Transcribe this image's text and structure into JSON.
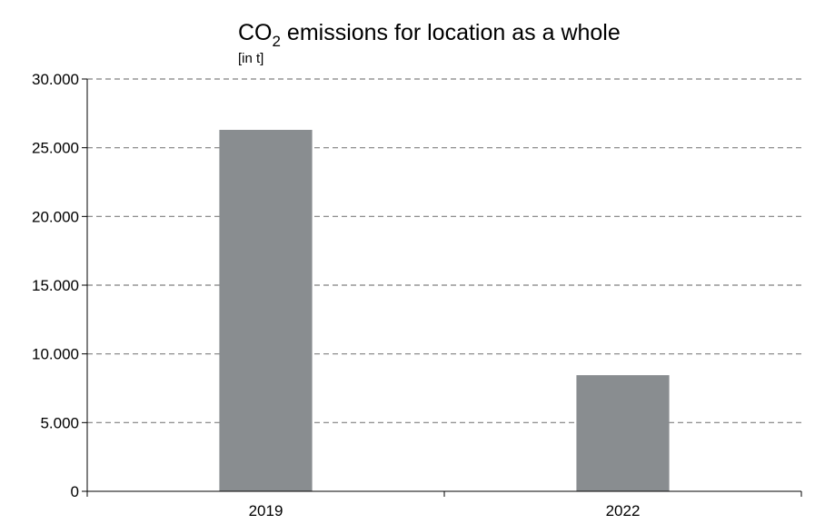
{
  "chart_data": {
    "type": "bar",
    "title": {
      "prefix": "CO",
      "subscript": "2",
      "suffix": " emissions for location as a whole"
    },
    "subtitle": "[in t]",
    "xlabel": "",
    "ylabel": "",
    "categories": [
      "2019",
      "2022"
    ],
    "values": [
      26300,
      8450
    ],
    "ylim": [
      0,
      30000
    ],
    "yticks": [
      {
        "value": 0,
        "label": "0"
      },
      {
        "value": 5000,
        "label": "5.000"
      },
      {
        "value": 10000,
        "label": "10.000"
      },
      {
        "value": 15000,
        "label": "15.000"
      },
      {
        "value": 20000,
        "label": "20.000"
      },
      {
        "value": 25000,
        "label": "25.000"
      },
      {
        "value": 30000,
        "label": "30.000"
      }
    ],
    "grid": "horizontal-dashed",
    "legend": "none",
    "bar_color": "#898d90",
    "grid_color": "#808080"
  }
}
